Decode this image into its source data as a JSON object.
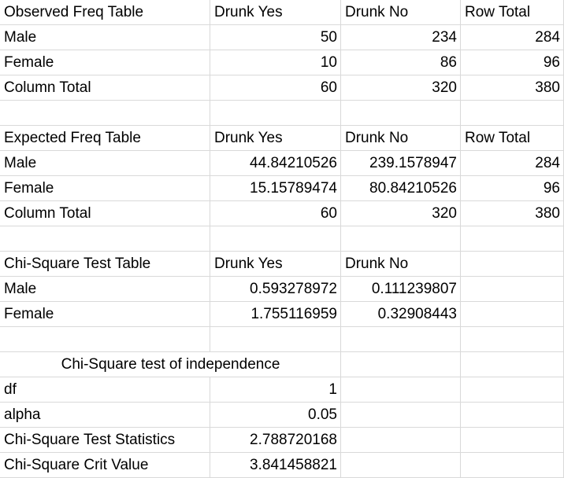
{
  "observed": {
    "header": [
      "Observed Freq Table",
      "Drunk Yes",
      "Drunk No",
      "Row Total"
    ],
    "rows": [
      [
        "Male",
        "50",
        "234",
        "284"
      ],
      [
        "Female",
        "10",
        "86",
        "96"
      ],
      [
        "Column Total",
        "60",
        "320",
        "380"
      ]
    ]
  },
  "expected": {
    "header": [
      "Expected Freq Table",
      "Drunk Yes",
      "Drunk No",
      "Row Total"
    ],
    "rows": [
      [
        "Male",
        "44.84210526",
        "239.1578947",
        "284"
      ],
      [
        "Female",
        "15.15789474",
        "80.84210526",
        "96"
      ],
      [
        "Column Total",
        "60",
        "320",
        "380"
      ]
    ]
  },
  "chisq": {
    "header": [
      "Chi-Square Test Table",
      "Drunk Yes",
      "Drunk No",
      ""
    ],
    "rows": [
      [
        "Male",
        "0.593278972",
        "0.111239807",
        ""
      ],
      [
        "Female",
        "1.755116959",
        "0.32908443",
        ""
      ]
    ]
  },
  "independence": {
    "title": "Chi-Square test of independence",
    "rows": [
      [
        "df",
        "1"
      ],
      [
        "alpha",
        "0.05"
      ],
      [
        "Chi-Square Test Statistics",
        "2.788720168"
      ],
      [
        "Chi-Square Crit Value",
        "3.841458821"
      ]
    ]
  }
}
